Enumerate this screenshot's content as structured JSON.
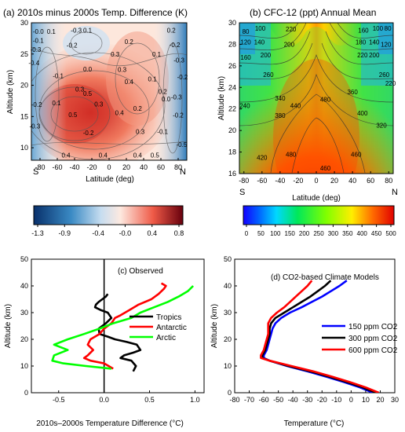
{
  "chart_data": [
    {
      "type": "heatmap",
      "title": "(a) 2010s minus 2000s Temp. Difference (K)",
      "xlabel": "Latitude (deg)",
      "ylabel": "Altitude (km)",
      "xlim": [
        -90,
        90
      ],
      "ylim": [
        8,
        30
      ],
      "xticks": [
        -80,
        -60,
        -40,
        -20,
        0,
        20,
        40,
        60,
        80
      ],
      "yticks": [
        10,
        15,
        20,
        25,
        30
      ],
      "x_end_labels": [
        "S",
        "N"
      ],
      "colorbar_ticks": [
        "-1.3",
        "-0.9",
        "-0.4",
        "-0.0",
        "0.4",
        "0.8"
      ],
      "colorbar_range": [
        -1.3,
        0.8
      ],
      "contour_labels": [
        {
          "text": "-0.0",
          "x": -82,
          "y": 28.6
        },
        {
          "text": "0.1",
          "x": -67,
          "y": 28.6
        },
        {
          "text": "-0.3",
          "x": -38,
          "y": 28.8
        },
        {
          "text": "0.1",
          "x": -25,
          "y": 28.8
        },
        {
          "text": "0.2",
          "x": 72,
          "y": 28.8
        },
        {
          "text": "-0.1",
          "x": -82,
          "y": 27.2
        },
        {
          "text": "-0.3",
          "x": -85,
          "y": 25.7
        },
        {
          "text": "-0.2",
          "x": -43,
          "y": 26.4
        },
        {
          "text": "0.2",
          "x": 23,
          "y": 27.0
        },
        {
          "text": "-0.2",
          "x": 76,
          "y": 26.5
        },
        {
          "text": "-0.4",
          "x": -87,
          "y": 23.6
        },
        {
          "text": "0.3",
          "x": 7,
          "y": 25.0
        },
        {
          "text": "0.1",
          "x": 55,
          "y": 25.0
        },
        {
          "text": "-0.3",
          "x": 81,
          "y": 24.0
        },
        {
          "text": "0.0",
          "x": -25,
          "y": 22.6
        },
        {
          "text": "0.3",
          "x": 15,
          "y": 22.5
        },
        {
          "text": "-0.1",
          "x": -59,
          "y": 21.5
        },
        {
          "text": "-0.2",
          "x": 85,
          "y": 21.3
        },
        {
          "text": "0.4",
          "x": 23,
          "y": 20.6
        },
        {
          "text": "0.1",
          "x": 50,
          "y": 21.0
        },
        {
          "text": "0.3",
          "x": -34,
          "y": 19.4
        },
        {
          "text": "0.5",
          "x": -25,
          "y": 18.7
        },
        {
          "text": "0.2",
          "x": 62,
          "y": 19.0
        },
        {
          "text": "0.0",
          "x": 66,
          "y": 17.8
        },
        {
          "text": "-0.2",
          "x": -84,
          "y": 16.9
        },
        {
          "text": "0.1",
          "x": -61,
          "y": 17.2
        },
        {
          "text": "0.3",
          "x": -12,
          "y": 17.0
        },
        {
          "text": "0.4",
          "x": 12,
          "y": 15.6
        },
        {
          "text": "0.2",
          "x": 33,
          "y": 16.3
        },
        {
          "text": "0.5",
          "x": -42,
          "y": 15.3
        },
        {
          "text": "-0.3",
          "x": -86,
          "y": 13.5
        },
        {
          "text": "-0.2",
          "x": -24,
          "y": 12.4
        },
        {
          "text": "0.3",
          "x": 36,
          "y": 12.6
        },
        {
          "text": "-0.1",
          "x": 62,
          "y": 12.6
        },
        {
          "text": "0.4",
          "x": -50,
          "y": 8.8
        },
        {
          "text": "0.4",
          "x": -7,
          "y": 8.8
        },
        {
          "text": "0.4",
          "x": 33,
          "y": 8.8
        },
        {
          "text": "0.5",
          "x": 53,
          "y": 8.8
        },
        {
          "text": "-0.5",
          "x": 84,
          "y": 10.5
        },
        {
          "text": "-0.2",
          "x": 80,
          "y": 15.2
        },
        {
          "text": "-0.3",
          "x": 78,
          "y": 18.1
        }
      ]
    },
    {
      "type": "heatmap",
      "title": "(b) CFC-12 (ppt)   Annual Mean",
      "xlabel": "Latitude (deg)",
      "ylabel": "Altitude (km)",
      "xlim": [
        -85,
        85
      ],
      "ylim": [
        16,
        30
      ],
      "xticks": [
        -80,
        -60,
        -40,
        -20,
        0,
        20,
        40,
        60,
        80
      ],
      "yticks": [
        16,
        18,
        20,
        22,
        24,
        26,
        28,
        30
      ],
      "x_end_labels": [
        "S",
        "N"
      ],
      "colorbar_ticks": [
        "0",
        "50",
        "100",
        "150",
        "200",
        "250",
        "300",
        "350",
        "400",
        "450",
        "500"
      ],
      "colorbar_range": [
        0,
        500
      ],
      "contour_labels": [
        {
          "text": "80",
          "x": -78,
          "y": 29.2
        },
        {
          "text": "100",
          "x": -62,
          "y": 29.5
        },
        {
          "text": "220",
          "x": -28,
          "y": 29.4
        },
        {
          "text": "160",
          "x": 52,
          "y": 29.3
        },
        {
          "text": "100",
          "x": 68,
          "y": 29.5
        },
        {
          "text": "80",
          "x": 79,
          "y": 29.5
        },
        {
          "text": "120",
          "x": -78,
          "y": 28.2
        },
        {
          "text": "140",
          "x": -63,
          "y": 28.2
        },
        {
          "text": "200",
          "x": -30,
          "y": 28.0
        },
        {
          "text": "180",
          "x": 49,
          "y": 28.2
        },
        {
          "text": "140",
          "x": 64,
          "y": 28.2
        },
        {
          "text": "120",
          "x": 77,
          "y": 28.0
        },
        {
          "text": "160",
          "x": -78,
          "y": 26.8
        },
        {
          "text": "200",
          "x": -56,
          "y": 27.0
        },
        {
          "text": "220",
          "x": 51,
          "y": 27.0
        },
        {
          "text": "200",
          "x": 64,
          "y": 27.0
        },
        {
          "text": "260",
          "x": -53,
          "y": 25.2
        },
        {
          "text": "260",
          "x": 75,
          "y": 25.2
        },
        {
          "text": "220",
          "x": 82,
          "y": 24.4
        },
        {
          "text": "360",
          "x": 40,
          "y": 23.6
        },
        {
          "text": "340",
          "x": -40,
          "y": 23.0
        },
        {
          "text": "480",
          "x": 10,
          "y": 22.9
        },
        {
          "text": "240",
          "x": -79,
          "y": 22.3
        },
        {
          "text": "440",
          "x": -23,
          "y": 22.3
        },
        {
          "text": "400",
          "x": 51,
          "y": 21.6
        },
        {
          "text": "380",
          "x": -40,
          "y": 21.4
        },
        {
          "text": "320",
          "x": 72,
          "y": 20.5
        },
        {
          "text": "480",
          "x": -28,
          "y": 17.8
        },
        {
          "text": "420",
          "x": -60,
          "y": 17.5
        },
        {
          "text": "460",
          "x": 44,
          "y": 17.8
        },
        {
          "text": "460",
          "x": 10,
          "y": 16.5
        }
      ]
    },
    {
      "type": "line",
      "title": "(c) Observed",
      "xlabel": "2010s–2000s Temperature Difference (°C)",
      "ylabel": "Altitude (km)",
      "xlim": [
        -0.8,
        1.1
      ],
      "ylim": [
        0,
        50
      ],
      "xticks": [
        -0.5,
        0.0,
        0.5,
        1.0
      ],
      "yticks": [
        0,
        10,
        20,
        30,
        40,
        50
      ],
      "legend_position": "right",
      "series": [
        {
          "name": "Tropics",
          "color": "#000000",
          "x": [
            0.32,
            0.35,
            0.3,
            0.18,
            0.22,
            0.32,
            0.4,
            0.36,
            0.25,
            0.12,
            0.04,
            -0.05,
            -0.06,
            0.02,
            0.08,
            0.04,
            -0.04,
            -0.1,
            -0.09,
            -0.06,
            -0.02,
            0.02,
            0.04
          ],
          "y": [
            8,
            10,
            12,
            13,
            14,
            15,
            16,
            18,
            19,
            20,
            21,
            22,
            24,
            26,
            28,
            30,
            31,
            32,
            33,
            34,
            35,
            36,
            37
          ]
        },
        {
          "name": "Antarctic",
          "color": "#ff0000",
          "x": [
            0.1,
            0.05,
            0.0,
            -0.15,
            -0.22,
            -0.18,
            -0.12,
            -0.18,
            -0.15,
            -0.05,
            0.0,
            0.08,
            0.12,
            0.18,
            0.28,
            0.38,
            0.52,
            0.6,
            0.66,
            0.68,
            0.63
          ],
          "y": [
            9,
            10,
            11,
            12,
            13,
            14,
            16,
            18,
            20,
            22,
            24,
            26,
            28,
            29,
            31,
            33,
            35,
            37,
            39,
            40,
            41
          ]
        },
        {
          "name": "Arctic",
          "color": "#00ff00",
          "x": [
            0.08,
            -0.2,
            -0.45,
            -0.57,
            -0.55,
            -0.4,
            -0.55,
            -0.4,
            -0.22,
            -0.05,
            0.1,
            0.3,
            0.4,
            0.55,
            0.7,
            0.82,
            0.92,
            0.98
          ],
          "y": [
            9,
            10,
            11,
            12,
            14,
            16,
            18,
            20,
            22,
            24,
            26,
            28,
            30,
            32,
            34,
            36,
            38,
            40
          ]
        }
      ]
    },
    {
      "type": "line",
      "title": "(d) CO2-based Climate Models",
      "xlabel": "Temperature (°C)",
      "ylabel": "Altitude (km)",
      "xlim": [
        -80,
        30
      ],
      "ylim": [
        0,
        50
      ],
      "xticks": [
        -80,
        -70,
        -60,
        -50,
        -40,
        -30,
        -20,
        -10,
        0,
        10,
        20,
        30
      ],
      "yticks": [
        0,
        10,
        20,
        30,
        40,
        50
      ],
      "legend_position": "right",
      "series": [
        {
          "name": "150 ppm CO2",
          "color": "#0000ff",
          "x": [
            15,
            6,
            -5,
            -17,
            -30,
            -44,
            -56,
            -60,
            -60,
            -58,
            -57,
            -56,
            -55,
            -54,
            -52,
            -48,
            -42,
            -34,
            -27,
            -20,
            -14,
            -8,
            -3
          ],
          "y": [
            0,
            2,
            4,
            6,
            8,
            10,
            12,
            13,
            14,
            16,
            18,
            20,
            22,
            24,
            26,
            28,
            30,
            32,
            34,
            36,
            38,
            40,
            42
          ]
        },
        {
          "name": "300 ppm CO2",
          "color": "#000000",
          "x": [
            17,
            8,
            -3,
            -15,
            -28,
            -43,
            -56,
            -61,
            -61,
            -59,
            -58,
            -57,
            -56,
            -56,
            -55,
            -52,
            -46,
            -40,
            -34,
            -28,
            -23,
            -18,
            -14
          ],
          "y": [
            0,
            2,
            4,
            6,
            8,
            10,
            12,
            13,
            14,
            16,
            18,
            20,
            22,
            24,
            26,
            28,
            30,
            32,
            34,
            36,
            38,
            40,
            42
          ]
        },
        {
          "name": "600 ppm CO2",
          "color": "#ff0000",
          "x": [
            19,
            10,
            -1,
            -13,
            -26,
            -41,
            -56,
            -62,
            -62,
            -60,
            -59,
            -58,
            -57,
            -57,
            -57,
            -55,
            -51,
            -46,
            -42,
            -38,
            -34,
            -30,
            -27
          ],
          "y": [
            0,
            2,
            4,
            6,
            8,
            10,
            12,
            13,
            14,
            16,
            18,
            20,
            22,
            24,
            26,
            28,
            30,
            32,
            34,
            36,
            38,
            40,
            42
          ]
        }
      ]
    }
  ]
}
